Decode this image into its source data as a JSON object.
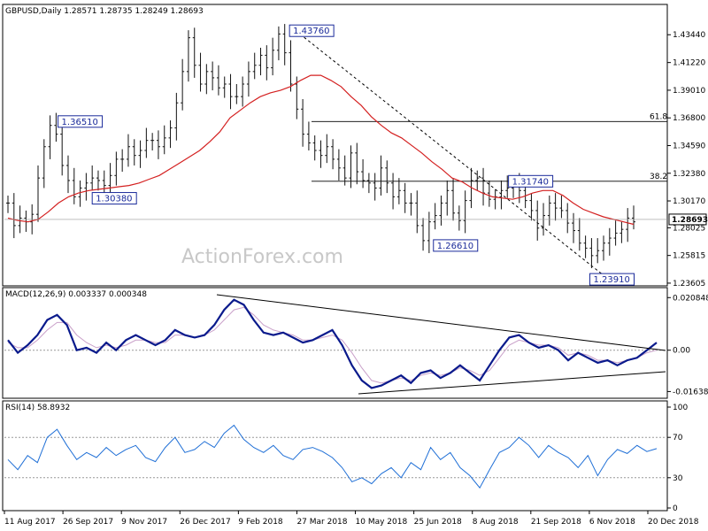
{
  "chart_data": [
    {
      "type": "ohlc",
      "panel": "price",
      "title": "GBPUSD,Daily  1.28571 1.28735 1.28249 1.28693",
      "watermark": "ActionForex.com",
      "ylim": [
        1.236,
        1.448
      ],
      "y_ticks": [
        "1.43440",
        "1.41220",
        "1.39010",
        "1.36800",
        "1.34590",
        "1.32380",
        "1.30170",
        "1.28025",
        "1.25815",
        "1.23605"
      ],
      "last_price": "1.28693",
      "x_ticks": [
        "11 Aug 2017",
        "26 Sep 2017",
        "9 Nov 2017",
        "26 Dec 2017",
        "9 Feb 2018",
        "27 Mar 2018",
        "10 May 2018",
        "25 Jun 2018",
        "8 Aug 2018",
        "21 Sep 2018",
        "6 Nov 2018",
        "20 Dec 2018"
      ],
      "closes": [
        1.3,
        1.282,
        1.288,
        1.285,
        1.291,
        1.32,
        1.345,
        1.362,
        1.355,
        1.33,
        1.318,
        1.305,
        1.312,
        1.316,
        1.32,
        1.318,
        1.314,
        1.322,
        1.335,
        1.335,
        1.345,
        1.338,
        1.342,
        1.35,
        1.35,
        1.345,
        1.352,
        1.36,
        1.38,
        1.405,
        1.432,
        1.41,
        1.395,
        1.405,
        1.4,
        1.392,
        1.395,
        1.385,
        1.385,
        1.395,
        1.405,
        1.41,
        1.418,
        1.408,
        1.422,
        1.435,
        1.42,
        1.395,
        1.375,
        1.355,
        1.348,
        1.342,
        1.338,
        1.345,
        1.335,
        1.328,
        1.32,
        1.34,
        1.325,
        1.318,
        1.316,
        1.312,
        1.328,
        1.316,
        1.305,
        1.31,
        1.3,
        1.3,
        1.282,
        1.27,
        1.285,
        1.29,
        1.3,
        1.31,
        1.292,
        1.286,
        1.302,
        1.318,
        1.32,
        1.308,
        1.303,
        1.305,
        1.31,
        1.312,
        1.316,
        1.31,
        1.302,
        1.294,
        1.28,
        1.29,
        1.3,
        1.296,
        1.294,
        1.284,
        1.278,
        1.268,
        1.264,
        1.258,
        1.262,
        1.268,
        1.272,
        1.276,
        1.279,
        1.288,
        1.285
      ],
      "ma_values": [
        1.288,
        1.286,
        1.285,
        1.287,
        1.293,
        1.3,
        1.305,
        1.308,
        1.31,
        1.311,
        1.312,
        1.313,
        1.314,
        1.316,
        1.319,
        1.322,
        1.327,
        1.332,
        1.337,
        1.342,
        1.349,
        1.357,
        1.368,
        1.374,
        1.38,
        1.385,
        1.388,
        1.39,
        1.393,
        1.398,
        1.402,
        1.402,
        1.398,
        1.393,
        1.385,
        1.378,
        1.369,
        1.362,
        1.356,
        1.352,
        1.346,
        1.34,
        1.333,
        1.327,
        1.32,
        1.317,
        1.312,
        1.308,
        1.305,
        1.304,
        1.303,
        1.305,
        1.308,
        1.31,
        1.31,
        1.306,
        1.3,
        1.295,
        1.292,
        1.289,
        1.287,
        1.285,
        1.283
      ],
      "annotations": [
        {
          "text": "1.43760",
          "x": 45,
          "y": 1.4376,
          "anchor": "left"
        },
        {
          "text": "1.36510",
          "x": 8,
          "y": 1.3651,
          "anchor": "left"
        },
        {
          "text": "1.30380",
          "x": 17,
          "y": 1.3038,
          "anchor": "center"
        },
        {
          "text": "1.26610",
          "x": 68,
          "y": 1.2661,
          "anchor": "left"
        },
        {
          "text": "1.31740",
          "x": 80,
          "y": 1.3174,
          "anchor": "left"
        },
        {
          "text": "1.23910",
          "x": 93,
          "y": 1.2391,
          "anchor": "left"
        }
      ],
      "fib_levels": [
        {
          "label": "61.8",
          "value": 1.3651
        },
        {
          "label": "38.2",
          "value": 1.3174
        }
      ],
      "trendline": {
        "from": [
          46,
          1.4376
        ],
        "to": [
          96,
          1.2391
        ]
      }
    },
    {
      "type": "line",
      "panel": "macd",
      "title": "MACD(12,26,9) 0.003337 0.000348",
      "ylim": [
        -0.018,
        0.022
      ],
      "y_ticks": [
        "0.020848",
        "0.00",
        "-0.016389"
      ],
      "macd": [
        0.004,
        -0.001,
        0.002,
        0.006,
        0.012,
        0.014,
        0.01,
        0.0,
        0.001,
        -0.001,
        0.003,
        0.0,
        0.004,
        0.006,
        0.004,
        0.002,
        0.004,
        0.008,
        0.006,
        0.005,
        0.006,
        0.01,
        0.016,
        0.02,
        0.018,
        0.012,
        0.007,
        0.006,
        0.007,
        0.005,
        0.003,
        0.004,
        0.006,
        0.008,
        0.002,
        -0.006,
        -0.012,
        -0.015,
        -0.014,
        -0.012,
        -0.01,
        -0.013,
        -0.009,
        -0.008,
        -0.011,
        -0.009,
        -0.006,
        -0.009,
        -0.012,
        -0.006,
        0.0,
        0.005,
        0.006,
        0.003,
        0.001,
        0.002,
        0.0,
        -0.004,
        -0.001,
        -0.003,
        -0.005,
        -0.004,
        -0.006,
        -0.004,
        -0.003,
        0.0,
        0.003
      ],
      "signal": [
        0.003,
        0.001,
        0.001,
        0.004,
        0.008,
        0.011,
        0.011,
        0.006,
        0.003,
        0.001,
        0.002,
        0.001,
        0.002,
        0.004,
        0.004,
        0.003,
        0.003,
        0.006,
        0.006,
        0.005,
        0.006,
        0.008,
        0.012,
        0.016,
        0.017,
        0.014,
        0.01,
        0.008,
        0.007,
        0.006,
        0.004,
        0.004,
        0.005,
        0.006,
        0.004,
        -0.001,
        -0.007,
        -0.012,
        -0.013,
        -0.012,
        -0.011,
        -0.012,
        -0.01,
        -0.009,
        -0.01,
        -0.009,
        -0.007,
        -0.008,
        -0.01,
        -0.008,
        -0.003,
        0.002,
        0.004,
        0.003,
        0.002,
        0.002,
        0.001,
        -0.002,
        -0.001,
        -0.002,
        -0.004,
        -0.004,
        -0.005,
        -0.004,
        -0.003,
        -0.001,
        0.0
      ]
    },
    {
      "type": "line",
      "panel": "rsi",
      "title": "RSI(14) 58.8932",
      "ylim": [
        0,
        100
      ],
      "y_ticks": [
        "100",
        "70",
        "30",
        "0"
      ],
      "levels": [
        70,
        30
      ],
      "rsi": [
        48,
        38,
        52,
        45,
        70,
        78,
        62,
        48,
        55,
        50,
        60,
        52,
        58,
        62,
        50,
        46,
        60,
        70,
        55,
        58,
        66,
        60,
        74,
        82,
        68,
        60,
        55,
        62,
        52,
        48,
        58,
        60,
        56,
        50,
        40,
        26,
        30,
        24,
        34,
        40,
        30,
        45,
        38,
        60,
        48,
        55,
        40,
        32,
        20,
        38,
        55,
        60,
        70,
        62,
        50,
        62,
        55,
        50,
        40,
        52,
        32,
        48,
        58,
        54,
        62,
        56,
        58.9
      ]
    }
  ]
}
